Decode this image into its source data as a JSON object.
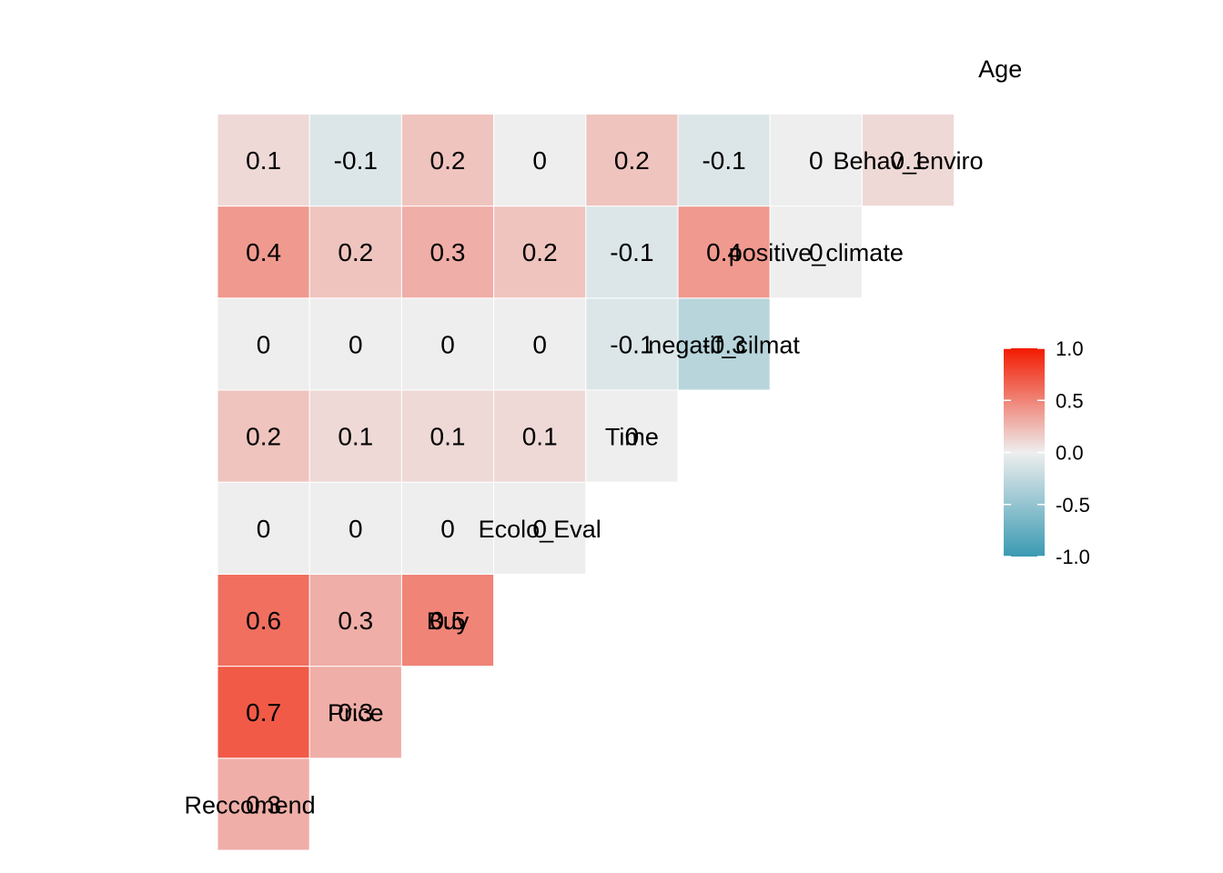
{
  "chart_data": {
    "type": "heatmap",
    "title": "",
    "variables": [
      "Reccomend",
      "Price",
      "Buy",
      "Ecolo_Eval",
      "Time",
      "negatif_cilmat",
      "positive_climate",
      "Behav_enviro",
      "Age"
    ],
    "cells": [
      {
        "row": "Price",
        "col": "Reccomend",
        "value": 0.3,
        "label": "0.3"
      },
      {
        "row": "Buy",
        "col": "Reccomend",
        "value": 0.7,
        "label": "0.7"
      },
      {
        "row": "Buy",
        "col": "Price",
        "value": 0.3,
        "label": "0.3"
      },
      {
        "row": "Ecolo_Eval",
        "col": "Reccomend",
        "value": 0.6,
        "label": "0.6"
      },
      {
        "row": "Ecolo_Eval",
        "col": "Price",
        "value": 0.3,
        "label": "0.3"
      },
      {
        "row": "Ecolo_Eval",
        "col": "Buy",
        "value": 0.5,
        "label": "0.5"
      },
      {
        "row": "Time",
        "col": "Reccomend",
        "value": 0.0,
        "label": "0"
      },
      {
        "row": "Time",
        "col": "Price",
        "value": 0.0,
        "label": "0"
      },
      {
        "row": "Time",
        "col": "Buy",
        "value": 0.0,
        "label": "0"
      },
      {
        "row": "Time",
        "col": "Ecolo_Eval",
        "value": 0.0,
        "label": "0"
      },
      {
        "row": "negatif_cilmat",
        "col": "Reccomend",
        "value": 0.2,
        "label": "0.2"
      },
      {
        "row": "negatif_cilmat",
        "col": "Price",
        "value": 0.1,
        "label": "0.1"
      },
      {
        "row": "negatif_cilmat",
        "col": "Buy",
        "value": 0.1,
        "label": "0.1"
      },
      {
        "row": "negatif_cilmat",
        "col": "Ecolo_Eval",
        "value": 0.1,
        "label": "0.1"
      },
      {
        "row": "negatif_cilmat",
        "col": "Time",
        "value": 0.0,
        "label": "0"
      },
      {
        "row": "positive_climate",
        "col": "Reccomend",
        "value": 0.0,
        "label": "0"
      },
      {
        "row": "positive_climate",
        "col": "Price",
        "value": 0.0,
        "label": "0"
      },
      {
        "row": "positive_climate",
        "col": "Buy",
        "value": 0.0,
        "label": "0"
      },
      {
        "row": "positive_climate",
        "col": "Ecolo_Eval",
        "value": 0.0,
        "label": "0"
      },
      {
        "row": "positive_climate",
        "col": "Time",
        "value": -0.1,
        "label": "-0.1"
      },
      {
        "row": "positive_climate",
        "col": "negatif_cilmat",
        "value": -0.3,
        "label": "-0.3"
      },
      {
        "row": "Behav_enviro",
        "col": "Reccomend",
        "value": 0.4,
        "label": "0.4"
      },
      {
        "row": "Behav_enviro",
        "col": "Price",
        "value": 0.2,
        "label": "0.2"
      },
      {
        "row": "Behav_enviro",
        "col": "Buy",
        "value": 0.3,
        "label": "0.3"
      },
      {
        "row": "Behav_enviro",
        "col": "Ecolo_Eval",
        "value": 0.2,
        "label": "0.2"
      },
      {
        "row": "Behav_enviro",
        "col": "Time",
        "value": -0.1,
        "label": "-0.1"
      },
      {
        "row": "Behav_enviro",
        "col": "negatif_cilmat",
        "value": 0.4,
        "label": "0.4"
      },
      {
        "row": "Behav_enviro",
        "col": "positive_climate",
        "value": 0.0,
        "label": "0"
      },
      {
        "row": "Age",
        "col": "Reccomend",
        "value": 0.1,
        "label": "0.1"
      },
      {
        "row": "Age",
        "col": "Price",
        "value": -0.1,
        "label": "-0.1"
      },
      {
        "row": "Age",
        "col": "Buy",
        "value": 0.2,
        "label": "0.2"
      },
      {
        "row": "Age",
        "col": "Ecolo_Eval",
        "value": 0.0,
        "label": "0"
      },
      {
        "row": "Age",
        "col": "Time",
        "value": 0.2,
        "label": "0.2"
      },
      {
        "row": "Age",
        "col": "negatif_cilmat",
        "value": -0.1,
        "label": "-0.1"
      },
      {
        "row": "Age",
        "col": "positive_climate",
        "value": 0.0,
        "label": "0"
      },
      {
        "row": "Age",
        "col": "Behav_enviro",
        "value": 0.1,
        "label": "0.1"
      }
    ],
    "color_scale": {
      "low": "#3A9AB2",
      "mid": "#EEEEEE",
      "high": "#F21A00",
      "limits": [
        -1,
        1
      ]
    },
    "legend": {
      "placement": "right",
      "ticks": [
        "1.0",
        "0.5",
        "0.0",
        "-0.5",
        "-1.0"
      ]
    }
  }
}
